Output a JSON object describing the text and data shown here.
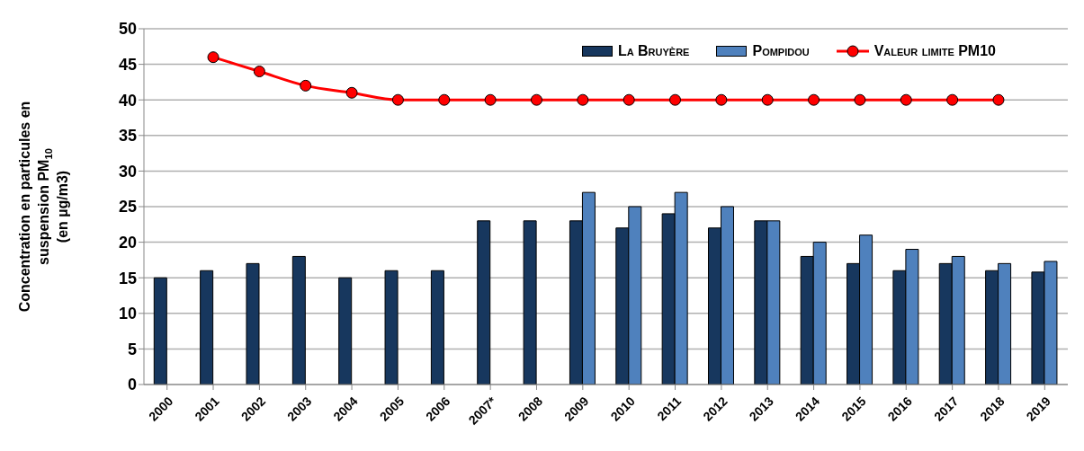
{
  "chart_data": {
    "type": "bar",
    "ylabel": "Concentration en particules en\nsuspension PM$_{10}$\n(en µg/m3)",
    "categories": [
      "2000",
      "2001",
      "2002",
      "2003",
      "2004",
      "2005",
      "2006",
      "2007*",
      "2008",
      "2009",
      "2010",
      "2011",
      "2012",
      "2013",
      "2014",
      "2015",
      "2016",
      "2017",
      "2018",
      "2019"
    ],
    "series": [
      {
        "name": "La Bruyère",
        "color": "#17375e",
        "values": [
          15,
          16,
          17,
          18,
          15,
          16,
          16,
          23,
          23,
          23,
          22,
          24,
          22,
          23,
          18,
          17,
          16,
          17,
          16,
          15.8
        ]
      },
      {
        "name": "Pompidou",
        "color": "#4f81bd",
        "values": [
          null,
          null,
          null,
          null,
          null,
          null,
          null,
          null,
          null,
          27,
          25,
          27,
          25,
          23,
          20,
          21,
          19,
          18,
          17,
          17.3
        ]
      },
      {
        "name": "Valeur limite PM10",
        "type": "line",
        "color": "#ff0000",
        "marker": "circle",
        "values": [
          null,
          46,
          44,
          42,
          41,
          40,
          40,
          40,
          40,
          40,
          40,
          40,
          40,
          40,
          40,
          40,
          40,
          40,
          40,
          null
        ]
      }
    ],
    "ylim": [
      0,
      50
    ],
    "yticks": [
      0,
      5,
      10,
      15,
      20,
      25,
      30,
      35,
      40,
      45,
      50
    ],
    "grid": "y",
    "legend": "top right"
  }
}
